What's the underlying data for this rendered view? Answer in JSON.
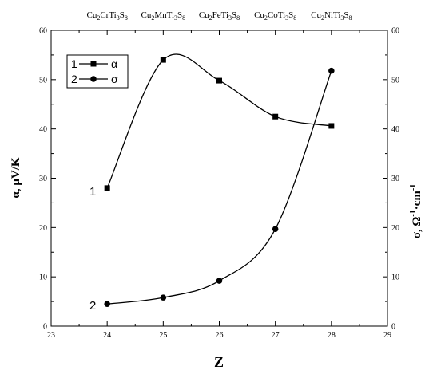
{
  "chart_data": {
    "type": "line",
    "xlabel": "Z",
    "ylabel_left": "α, μV/K",
    "ylabel_right_parts": [
      "σ, Ω",
      "-1",
      "·cm",
      "-1"
    ],
    "xlim": [
      23,
      29
    ],
    "ylim_left": [
      0,
      60
    ],
    "ylim_right": [
      0,
      60
    ],
    "x_ticks": [
      23,
      24,
      25,
      26,
      27,
      28,
      29
    ],
    "y_ticks": [
      0,
      10,
      20,
      30,
      40,
      50,
      60
    ],
    "grid": false,
    "legend_position": "top-left",
    "compounds": [
      {
        "x": 24,
        "parts": [
          "Cu",
          "2",
          "CrTi",
          "3",
          "S",
          "8"
        ]
      },
      {
        "x": 25,
        "parts": [
          "Cu",
          "2",
          "MnTi",
          "3",
          "S",
          "8"
        ]
      },
      {
        "x": 26,
        "parts": [
          "Cu",
          "2",
          "FeTi",
          "3",
          "S",
          "8"
        ]
      },
      {
        "x": 27,
        "parts": [
          "Cu",
          "2",
          "CoTi",
          "3",
          "S",
          "8"
        ]
      },
      {
        "x": 28,
        "parts": [
          "Cu",
          "2",
          "NiTi",
          "3",
          "S",
          "8"
        ]
      }
    ],
    "series": [
      {
        "name": "α",
        "number": "1",
        "marker": "square",
        "axis": "left",
        "x": [
          24,
          25,
          26,
          27,
          28
        ],
        "values": [
          28,
          54,
          49.8,
          42.5,
          40.6
        ]
      },
      {
        "name": "σ",
        "number": "2",
        "marker": "circle",
        "axis": "right",
        "x": [
          24,
          25,
          26,
          27,
          28
        ],
        "values": [
          4.5,
          5.8,
          9.2,
          19.7,
          51.8
        ]
      }
    ]
  }
}
